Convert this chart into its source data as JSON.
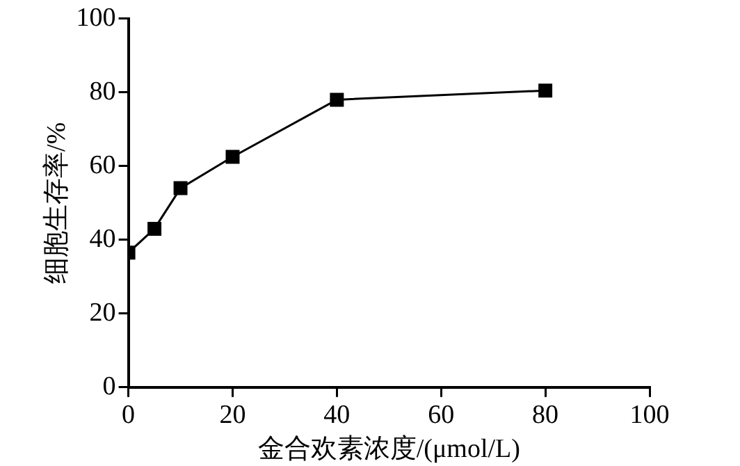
{
  "chart_data": {
    "type": "line",
    "xlabel": "金合欢素浓度/(μmol/L)",
    "ylabel": "细胞生存率/%",
    "x": [
      0,
      5,
      10,
      20,
      40,
      80
    ],
    "series": [
      {
        "color": "#000000",
        "values": [
          36.5,
          43,
          54,
          62.5,
          78,
          80.5
        ]
      }
    ],
    "xlim": [
      0,
      100
    ],
    "xticks": [
      0,
      20,
      40,
      60,
      80,
      100
    ],
    "ylim": [
      0,
      100
    ],
    "yticks": [
      0,
      20,
      40,
      60,
      80,
      100
    ],
    "grid": false,
    "legend": false,
    "marker": "square",
    "line_style": "solid"
  }
}
